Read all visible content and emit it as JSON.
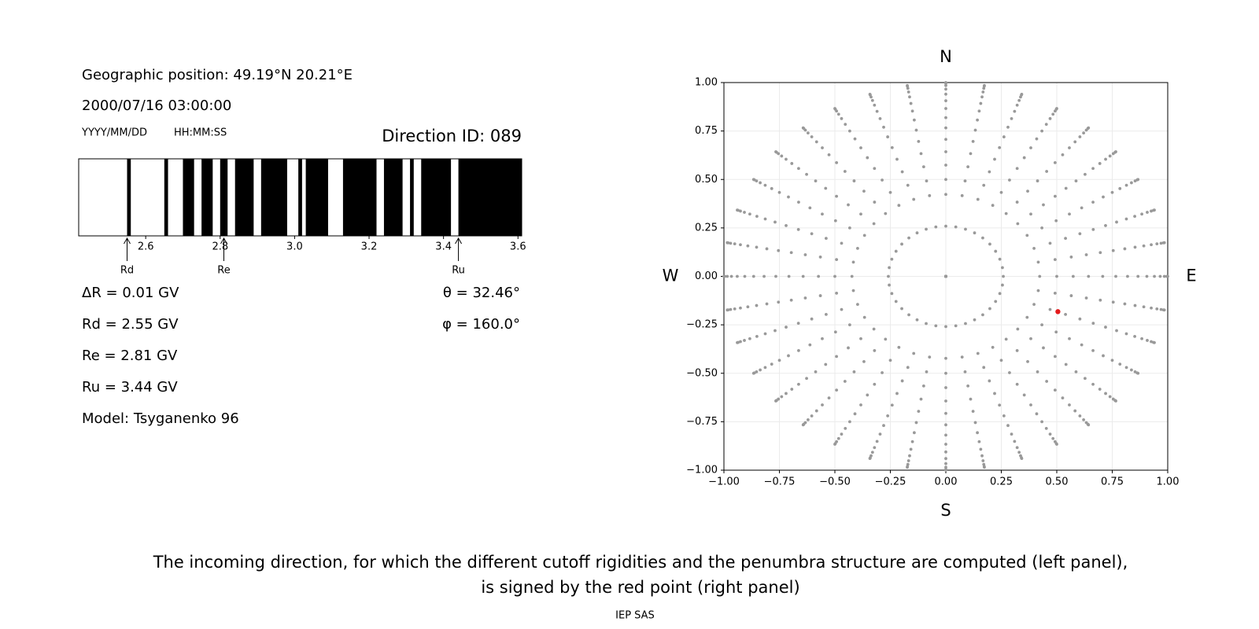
{
  "left_panel": {
    "geographic_position": "Geographic position: 49.19°N 20.21°E",
    "datetime": "2000/07/16 03:00:00",
    "date_format": "YYYY/MM/DD",
    "time_format": "HH:MM:SS",
    "direction_id": "Direction ID: 089",
    "penumbra": {
      "xlim": [
        2.42,
        3.61
      ],
      "xticks": [
        2.6,
        2.8,
        {
          "value": 3,
          "label": "3.0"
        },
        3.2,
        3.4,
        3.6
      ],
      "forbidden_bands": [
        [
          2.55,
          2.56
        ],
        [
          2.65,
          2.66
        ],
        [
          2.7,
          2.73
        ],
        [
          2.75,
          2.78
        ],
        [
          2.8,
          2.82
        ],
        [
          2.84,
          2.89
        ],
        [
          2.91,
          2.98
        ],
        [
          3.01,
          3.02
        ],
        [
          3.03,
          3.09
        ],
        [
          3.13,
          3.22
        ],
        [
          3.24,
          3.29
        ],
        [
          3.31,
          3.32
        ],
        [
          3.34,
          3.42
        ],
        [
          3.44,
          3.61
        ]
      ],
      "markers": [
        {
          "label": "Rd",
          "value": 2.55
        },
        {
          "label": "Re",
          "value": 2.81
        },
        {
          "label": "Ru",
          "value": 3.44
        }
      ]
    },
    "delta_r": "ΔR = 0.01 GV",
    "rd": "Rd = 2.55 GV",
    "re": "Re = 2.81 GV",
    "ru": "Ru = 3.44 GV",
    "model": "Model: Tsyganenko 96",
    "theta": "θ = 32.46°",
    "phi": "φ = 160.0°"
  },
  "chart_data": {
    "type": "scatter",
    "xlim": [
      -1,
      1
    ],
    "ylim": [
      -1,
      1
    ],
    "xticks": [
      {
        "value": -1,
        "label": "−1.00"
      },
      {
        "value": -0.75,
        "label": "−0.75"
      },
      {
        "value": -0.5,
        "label": "−0.50"
      },
      {
        "value": -0.25,
        "label": "−0.25"
      },
      {
        "value": 0,
        "label": "0.00"
      },
      {
        "value": 0.25,
        "label": "0.25"
      },
      {
        "value": 0.5,
        "label": "0.50"
      },
      {
        "value": 0.75,
        "label": "0.75"
      },
      {
        "value": 1,
        "label": "1.00"
      }
    ],
    "yticks": [
      {
        "value": -1,
        "label": "−1.00"
      },
      {
        "value": -0.75,
        "label": "−0.75"
      },
      {
        "value": -0.5,
        "label": "−0.50"
      },
      {
        "value": -0.25,
        "label": "−0.25"
      },
      {
        "value": 0,
        "label": "0.00"
      },
      {
        "value": 0.25,
        "label": "0.25"
      },
      {
        "value": 0.5,
        "label": "0.50"
      },
      {
        "value": 0.75,
        "label": "0.75"
      },
      {
        "value": 1,
        "label": "1.00"
      }
    ],
    "grid": true,
    "compass": {
      "top": "N",
      "bottom": "S",
      "left": "W",
      "right": "E"
    },
    "direction_grid": {
      "color": "#999999",
      "radii": [
        0,
        0.259,
        0.423,
        0.5,
        0.574,
        0.643,
        0.707,
        0.766,
        0.819,
        0.866,
        0.906,
        0.94,
        0.966,
        0.985,
        0.996,
        1.0
      ],
      "azimuths_deg": [
        0,
        10,
        20,
        30,
        40,
        50,
        60,
        70,
        80,
        90,
        100,
        110,
        120,
        130,
        140,
        150,
        160,
        170,
        180,
        190,
        200,
        210,
        220,
        230,
        240,
        250,
        260,
        270,
        280,
        290,
        300,
        310,
        320,
        330,
        340,
        350
      ]
    },
    "selected": {
      "color": "#e41a1c",
      "x": 0.505,
      "y": -0.182
    }
  },
  "caption": [
    "The incoming direction, for which the different cutoff rigidities and the penumbra structure are computed (left panel),",
    "is signed by the red point (right panel)"
  ],
  "footer": "IEP SAS"
}
